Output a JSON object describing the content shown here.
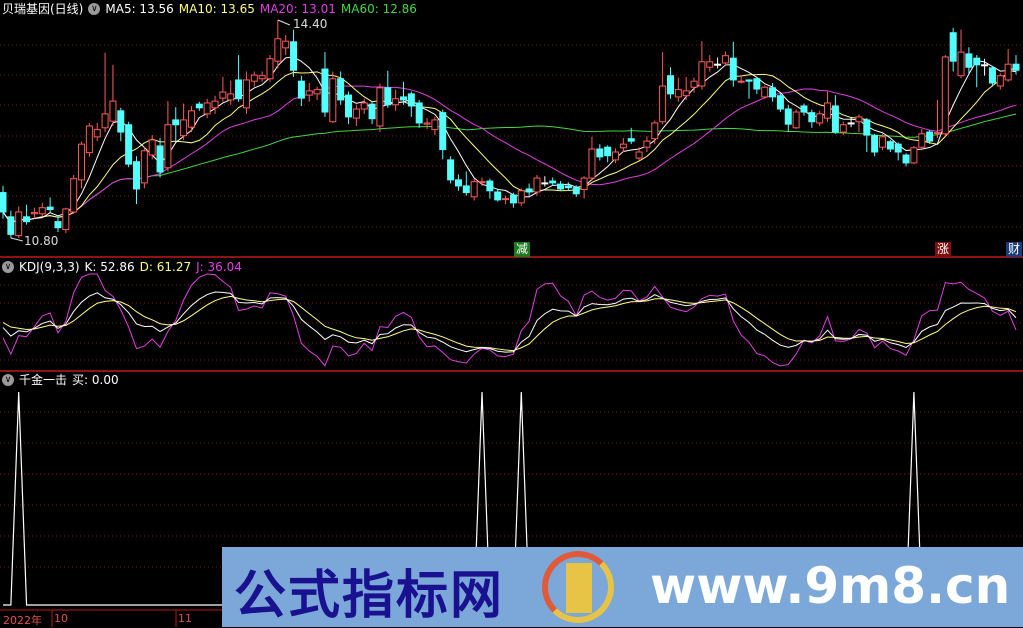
{
  "header": {
    "title": "贝瑞基因(日线)",
    "ma5": "MA5: 13.56",
    "ma10": "MA10: 13.65",
    "ma20": "MA20: 13.01",
    "ma60": "MA60: 12.86"
  },
  "kdj_header": {
    "name": "KDJ(9,3,3)",
    "k": "K: 52.86",
    "d": "D: 61.27",
    "j": "J: 36.04"
  },
  "signal_header": {
    "name": "千金一击",
    "buy": "买: 0.00"
  },
  "markers": {
    "jian": "减",
    "zhang": "涨",
    "cai": "财"
  },
  "price_labels": {
    "high": "14.40",
    "low": "10.80"
  },
  "date_axis": {
    "year": "2022年",
    "m10": "10",
    "m11": "11"
  },
  "watermark": {
    "text": "公式指标网",
    "url": "www.9m8.cn"
  },
  "colors": {
    "up": "#ff5a5a",
    "down": "#54ffff",
    "flat": "#ffffff",
    "ma5": "#ffffff",
    "ma10": "#ffff80",
    "ma20": "#e040e0",
    "ma60": "#40d840",
    "k": "#ffffff",
    "d": "#ffff80",
    "j": "#e040e0",
    "grid": "#8b1010"
  },
  "chart_data": [
    {
      "type": "candlestick",
      "title": "贝瑞基因(日线)",
      "ylim": [
        10.8,
        14.4
      ],
      "ticks_visible": [
        "14.40",
        "10.80"
      ],
      "grid": true,
      "moving_averages": {
        "MA5": 13.56,
        "MA10": 13.65,
        "MA20": 13.01,
        "MA60": 12.86
      },
      "ohlc": [
        [
          11.55,
          11.66,
          11.12,
          11.23
        ],
        [
          11.15,
          11.25,
          10.8,
          10.86
        ],
        [
          10.84,
          11.32,
          10.8,
          11.23
        ],
        [
          11.15,
          11.35,
          11.02,
          11.07
        ],
        [
          11.2,
          11.3,
          11.12,
          11.22
        ],
        [
          11.2,
          11.38,
          11.15,
          11.3
        ],
        [
          11.31,
          11.47,
          11.22,
          11.27
        ],
        [
          11.07,
          11.18,
          10.9,
          10.97
        ],
        [
          10.94,
          11.3,
          10.88,
          11.28
        ],
        [
          11.23,
          11.84,
          11.2,
          11.78
        ],
        [
          11.76,
          12.39,
          11.62,
          12.35
        ],
        [
          12.21,
          12.7,
          12.14,
          12.65
        ],
        [
          12.47,
          12.7,
          12.4,
          12.59
        ],
        [
          12.62,
          13.86,
          12.55,
          12.85
        ],
        [
          12.73,
          13.66,
          12.65,
          13.06
        ],
        [
          12.9,
          12.95,
          12.4,
          12.55
        ],
        [
          12.67,
          12.72,
          11.97,
          12.02
        ],
        [
          12.06,
          12.15,
          11.36,
          11.61
        ],
        [
          11.71,
          12.3,
          11.62,
          12.24
        ],
        [
          12.17,
          12.5,
          12.1,
          12.42
        ],
        [
          12.32,
          12.45,
          11.8,
          11.89
        ],
        [
          11.96,
          13.06,
          11.9,
          12.67
        ],
        [
          12.75,
          12.96,
          12.4,
          12.67
        ],
        [
          12.49,
          13.02,
          12.42,
          12.75
        ],
        [
          12.63,
          12.98,
          12.55,
          12.9
        ],
        [
          13.01,
          13.05,
          12.9,
          12.95
        ],
        [
          12.85,
          13.1,
          12.78,
          13.03
        ],
        [
          12.95,
          13.15,
          12.85,
          13.06
        ],
        [
          13.11,
          13.46,
          13.05,
          13.21
        ],
        [
          13.08,
          13.4,
          13.0,
          13.18
        ],
        [
          13.41,
          13.82,
          13.05,
          13.1
        ],
        [
          12.95,
          13.55,
          12.85,
          13.41
        ],
        [
          13.39,
          13.55,
          13.3,
          13.49
        ],
        [
          13.43,
          13.55,
          13.38,
          13.48
        ],
        [
          13.43,
          13.82,
          13.38,
          13.76
        ],
        [
          13.72,
          14.4,
          13.6,
          14.09
        ],
        [
          13.94,
          14.15,
          13.82,
          14.05
        ],
        [
          14.04,
          14.24,
          13.46,
          13.57
        ],
        [
          13.39,
          13.48,
          12.98,
          13.11
        ],
        [
          13.16,
          13.36,
          13.05,
          13.23
        ],
        [
          13.18,
          13.3,
          13.08,
          13.25
        ],
        [
          13.59,
          13.87,
          12.8,
          12.88
        ],
        [
          12.72,
          13.55,
          12.7,
          13.43
        ],
        [
          13.43,
          13.55,
          13.0,
          13.08
        ],
        [
          13.16,
          13.22,
          12.68,
          12.8
        ],
        [
          12.78,
          13.0,
          12.65,
          12.93
        ],
        [
          12.93,
          13.1,
          12.85,
          13.03
        ],
        [
          13.01,
          13.05,
          12.68,
          12.77
        ],
        [
          12.65,
          13.35,
          12.55,
          13.28
        ],
        [
          13.28,
          13.56,
          12.95,
          13.0
        ],
        [
          13.0,
          13.25,
          12.9,
          13.1
        ],
        [
          13.13,
          13.38,
          13.0,
          13.08
        ],
        [
          13.18,
          13.22,
          12.8,
          12.98
        ],
        [
          13.03,
          13.08,
          12.62,
          12.7
        ],
        [
          12.68,
          12.78,
          12.6,
          12.7
        ],
        [
          12.59,
          12.8,
          12.5,
          12.75
        ],
        [
          12.87,
          12.92,
          12.1,
          12.26
        ],
        [
          12.09,
          12.15,
          11.7,
          11.76
        ],
        [
          11.76,
          11.85,
          11.58,
          11.66
        ],
        [
          11.66,
          11.9,
          11.5,
          11.55
        ],
        [
          11.48,
          11.78,
          11.42,
          11.73
        ],
        [
          11.72,
          11.8,
          11.66,
          11.73
        ],
        [
          11.74,
          11.78,
          11.45,
          11.58
        ],
        [
          11.56,
          11.6,
          11.4,
          11.43
        ],
        [
          11.44,
          11.5,
          11.36,
          11.45
        ],
        [
          11.51,
          11.55,
          11.3,
          11.38
        ],
        [
          11.38,
          11.62,
          11.33,
          11.58
        ],
        [
          11.61,
          11.7,
          11.5,
          11.56
        ],
        [
          11.56,
          11.84,
          11.5,
          11.79
        ],
        [
          11.71,
          11.82,
          11.65,
          11.71
        ],
        [
          11.74,
          11.8,
          11.66,
          11.71
        ],
        [
          11.69,
          11.74,
          11.58,
          11.61
        ],
        [
          11.66,
          11.72,
          11.58,
          11.63
        ],
        [
          11.63,
          11.67,
          11.48,
          11.53
        ],
        [
          11.6,
          11.82,
          11.45,
          11.79
        ],
        [
          11.79,
          12.47,
          11.75,
          12.27
        ],
        [
          12.27,
          12.35,
          12.08,
          12.14
        ],
        [
          12.3,
          12.33,
          12.05,
          12.16
        ],
        [
          12.09,
          12.28,
          12.04,
          12.22
        ],
        [
          12.29,
          12.45,
          12.22,
          12.35
        ],
        [
          12.44,
          12.62,
          12.35,
          12.4
        ],
        [
          12.12,
          12.3,
          12.08,
          12.22
        ],
        [
          12.3,
          12.48,
          12.22,
          12.4
        ],
        [
          12.44,
          12.74,
          12.35,
          12.7
        ],
        [
          12.72,
          13.87,
          12.68,
          13.31
        ],
        [
          13.48,
          13.62,
          13.1,
          13.18
        ],
        [
          13.13,
          13.45,
          13.05,
          13.25
        ],
        [
          13.15,
          13.46,
          13.08,
          13.23
        ],
        [
          13.29,
          13.45,
          13.2,
          13.39
        ],
        [
          13.31,
          14.05,
          13.25,
          13.71
        ],
        [
          13.62,
          13.82,
          13.55,
          13.71
        ],
        [
          13.67,
          13.78,
          13.6,
          13.67
        ],
        [
          13.69,
          13.88,
          13.64,
          13.81
        ],
        [
          13.77,
          14.04,
          13.3,
          13.41
        ],
        [
          13.38,
          13.48,
          13.35,
          13.39
        ],
        [
          13.41,
          13.42,
          13.1,
          13.39
        ],
        [
          13.43,
          13.46,
          13.18,
          13.26
        ],
        [
          13.13,
          13.32,
          13.1,
          13.29
        ],
        [
          13.28,
          13.36,
          13.05,
          13.13
        ],
        [
          13.15,
          13.18,
          12.88,
          12.93
        ],
        [
          12.93,
          13.0,
          12.55,
          12.68
        ],
        [
          12.62,
          12.92,
          12.6,
          12.88
        ],
        [
          12.98,
          13.02,
          12.82,
          12.88
        ],
        [
          12.87,
          12.92,
          12.62,
          12.72
        ],
        [
          12.7,
          12.9,
          12.65,
          12.85
        ],
        [
          12.78,
          13.22,
          12.72,
          13.03
        ],
        [
          12.98,
          13.16,
          12.52,
          12.55
        ],
        [
          12.55,
          12.72,
          12.5,
          12.67
        ],
        [
          12.7,
          12.8,
          12.63,
          12.7
        ],
        [
          12.72,
          12.84,
          12.55,
          12.8
        ],
        [
          12.75,
          12.78,
          12.22,
          12.5
        ],
        [
          12.49,
          12.52,
          12.15,
          12.22
        ],
        [
          12.3,
          12.52,
          12.25,
          12.47
        ],
        [
          12.39,
          12.42,
          12.22,
          12.27
        ],
        [
          12.35,
          12.38,
          12.08,
          12.22
        ],
        [
          12.17,
          12.2,
          11.98,
          12.04
        ],
        [
          12.04,
          12.32,
          12.02,
          12.29
        ],
        [
          12.3,
          12.6,
          12.25,
          12.52
        ],
        [
          12.55,
          12.58,
          12.35,
          12.4
        ],
        [
          12.53,
          13.08,
          12.45,
          12.54
        ],
        [
          12.52,
          13.82,
          12.48,
          13.79
        ],
        [
          14.19,
          14.27,
          13.55,
          13.72
        ],
        [
          13.48,
          14.24,
          13.44,
          13.87
        ],
        [
          13.84,
          13.95,
          13.52,
          13.62
        ],
        [
          13.77,
          13.82,
          13.29,
          13.66
        ],
        [
          13.66,
          13.76,
          13.48,
          13.66
        ],
        [
          13.61,
          13.64,
          13.3,
          13.36
        ],
        [
          13.31,
          13.52,
          13.25,
          13.48
        ],
        [
          13.41,
          13.92,
          13.38,
          13.67
        ],
        [
          13.67,
          13.82,
          13.5,
          13.57
        ]
      ]
    },
    {
      "type": "line",
      "title": "KDJ(9,3,3)",
      "series_last": {
        "K": 52.86,
        "D": 61.27,
        "J": 36.04
      }
    },
    {
      "type": "line",
      "title": "千金一击",
      "series_last": {
        "买": 0.0
      },
      "buy_signal_bars": [
        3,
        62,
        67,
        117
      ],
      "signal_value": 1
    }
  ]
}
